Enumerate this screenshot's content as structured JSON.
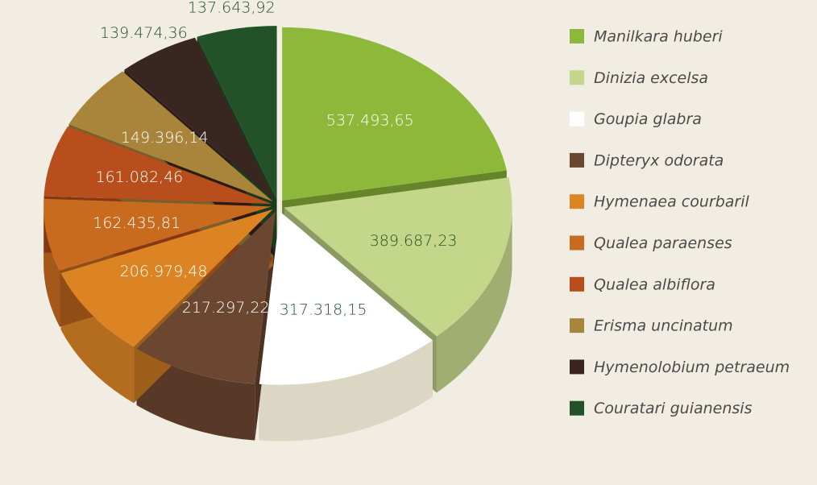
{
  "chart_data": {
    "type": "pie",
    "categories": [
      "Manilkara huberi",
      "Dinizia excelsa",
      "Goupia glabra",
      "Dipteryx odorata",
      "Hymenaea courbaril",
      "Qualea paraenses",
      "Qualea albiflora",
      "Erisma uncinatum",
      "Hymenolobium petraeum",
      "Couratari guianensis"
    ],
    "values": [
      537493.65,
      389687.23,
      317318.15,
      217297.22,
      206979.48,
      162435.81,
      161082.46,
      149396.14,
      139474.36,
      137643.92
    ],
    "value_labels": [
      "537.493,65",
      "389.687,23",
      "317.318,15",
      "217.297,22",
      "206.979,48",
      "162.435,81",
      "161.082,46",
      "149.396,14",
      "139.474,36",
      "137.643,92"
    ],
    "colors": [
      "#8db83a",
      "#c3d68a",
      "#ffffff",
      "#6b4630",
      "#dc8424",
      "#c86b1e",
      "#b74e1b",
      "#a8853a",
      "#3a2620",
      "#245228"
    ]
  }
}
